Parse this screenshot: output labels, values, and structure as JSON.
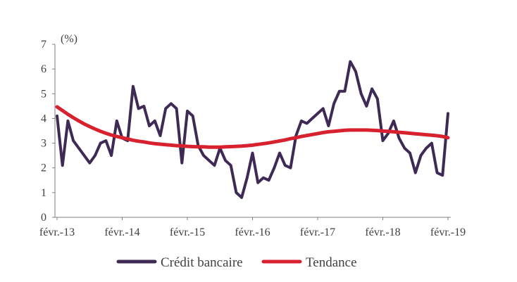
{
  "chart_data": {
    "type": "line",
    "unit_label": "(%)",
    "ylim": [
      0,
      7
    ],
    "y_ticks": [
      "0",
      "1",
      "2",
      "3",
      "4",
      "5",
      "6",
      "7"
    ],
    "x_tick_labels": [
      "févr.-13",
      "févr.-14",
      "févr.-15",
      "févr.-16",
      "févr.-17",
      "févr.-18",
      "févr.-19"
    ],
    "n_points": 73,
    "grid": false,
    "legend_position": "bottom",
    "series": [
      {
        "name": "Crédit bancaire",
        "color": "#3f2a55",
        "values": [
          4.1,
          2.1,
          3.9,
          3.1,
          2.8,
          2.5,
          2.2,
          2.5,
          3.0,
          3.1,
          2.5,
          3.9,
          3.2,
          3.1,
          5.3,
          4.4,
          4.5,
          3.7,
          3.9,
          3.3,
          4.4,
          4.6,
          4.4,
          2.2,
          4.3,
          4.1,
          2.9,
          2.5,
          2.3,
          2.1,
          2.8,
          2.3,
          2.1,
          1.0,
          0.8,
          1.6,
          2.6,
          1.4,
          1.6,
          1.5,
          2.0,
          2.6,
          2.1,
          2.0,
          3.3,
          3.9,
          3.8,
          4.0,
          4.2,
          4.4,
          3.7,
          4.6,
          5.1,
          5.1,
          6.3,
          5.9,
          5.0,
          4.5,
          5.2,
          4.8,
          3.1,
          3.4,
          3.9,
          3.2,
          2.8,
          2.6,
          1.8,
          2.5,
          2.8,
          3.0,
          1.8,
          1.7,
          4.2
        ]
      },
      {
        "name": "Tendance",
        "color": "#d7212f",
        "values": [
          4.47,
          4.32,
          4.17,
          4.03,
          3.9,
          3.78,
          3.67,
          3.57,
          3.48,
          3.4,
          3.33,
          3.27,
          3.22,
          3.17,
          3.12,
          3.08,
          3.05,
          3.01,
          2.98,
          2.96,
          2.94,
          2.92,
          2.9,
          2.89,
          2.87,
          2.86,
          2.85,
          2.85,
          2.84,
          2.84,
          2.84,
          2.85,
          2.86,
          2.87,
          2.88,
          2.9,
          2.92,
          2.95,
          2.98,
          3.01,
          3.05,
          3.09,
          3.13,
          3.18,
          3.22,
          3.27,
          3.31,
          3.35,
          3.39,
          3.43,
          3.46,
          3.48,
          3.5,
          3.52,
          3.53,
          3.53,
          3.53,
          3.53,
          3.52,
          3.51,
          3.49,
          3.48,
          3.46,
          3.44,
          3.42,
          3.4,
          3.38,
          3.36,
          3.34,
          3.32,
          3.3,
          3.27,
          3.22
        ]
      }
    ]
  }
}
